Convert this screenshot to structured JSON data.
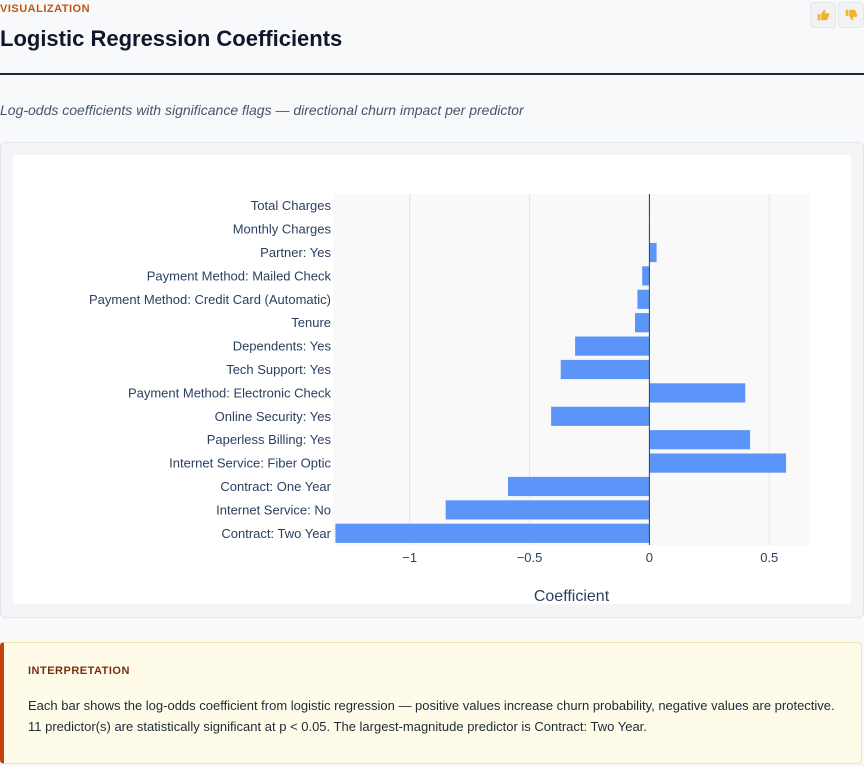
{
  "header": {
    "eyebrow": "VISUALIZATION",
    "title": "Logistic Regression Coefficients"
  },
  "subtitle": "Log-odds coefficients with significance flags — directional churn impact per predictor",
  "feedback": {
    "thumbs_up_icon": "thumbs-up-icon",
    "thumbs_down_icon": "thumbs-down-icon"
  },
  "chart_data": {
    "type": "bar",
    "orientation": "horizontal",
    "categories": [
      "Total Charges",
      "Monthly Charges",
      "Partner: Yes",
      "Payment Method: Mailed Check",
      "Payment Method: Credit Card (Automatic)",
      "Tenure",
      "Dependents: Yes",
      "Tech Support: Yes",
      "Payment Method: Electronic Check",
      "Online Security: Yes",
      "Paperless Billing: Yes",
      "Internet Service: Fiber Optic",
      "Contract: One Year",
      "Internet Service: No",
      "Contract: Two Year"
    ],
    "values": [
      0.0,
      0.0,
      0.03,
      -0.03,
      -0.05,
      -0.06,
      -0.31,
      -0.37,
      0.4,
      -0.41,
      0.42,
      0.57,
      -0.59,
      -0.85,
      -1.31
    ],
    "xlabel": "Coefficient",
    "ylabel": "",
    "xlim": [
      -1.32,
      0.67
    ],
    "xticks": [
      -1,
      -0.5,
      0,
      0.5
    ],
    "xtick_labels": [
      "−1",
      "−0.5",
      "0",
      "0.5"
    ],
    "bar_color": "#5b95f9",
    "grid": true
  },
  "interpretation": {
    "heading": "INTERPRETATION",
    "text": "Each bar shows the log-odds coefficient from logistic regression — positive values increase churn probability, negative values are protective. 11 predictor(s) are statistically significant at p < 0.05. The largest-magnitude predictor is Contract: Two Year."
  }
}
